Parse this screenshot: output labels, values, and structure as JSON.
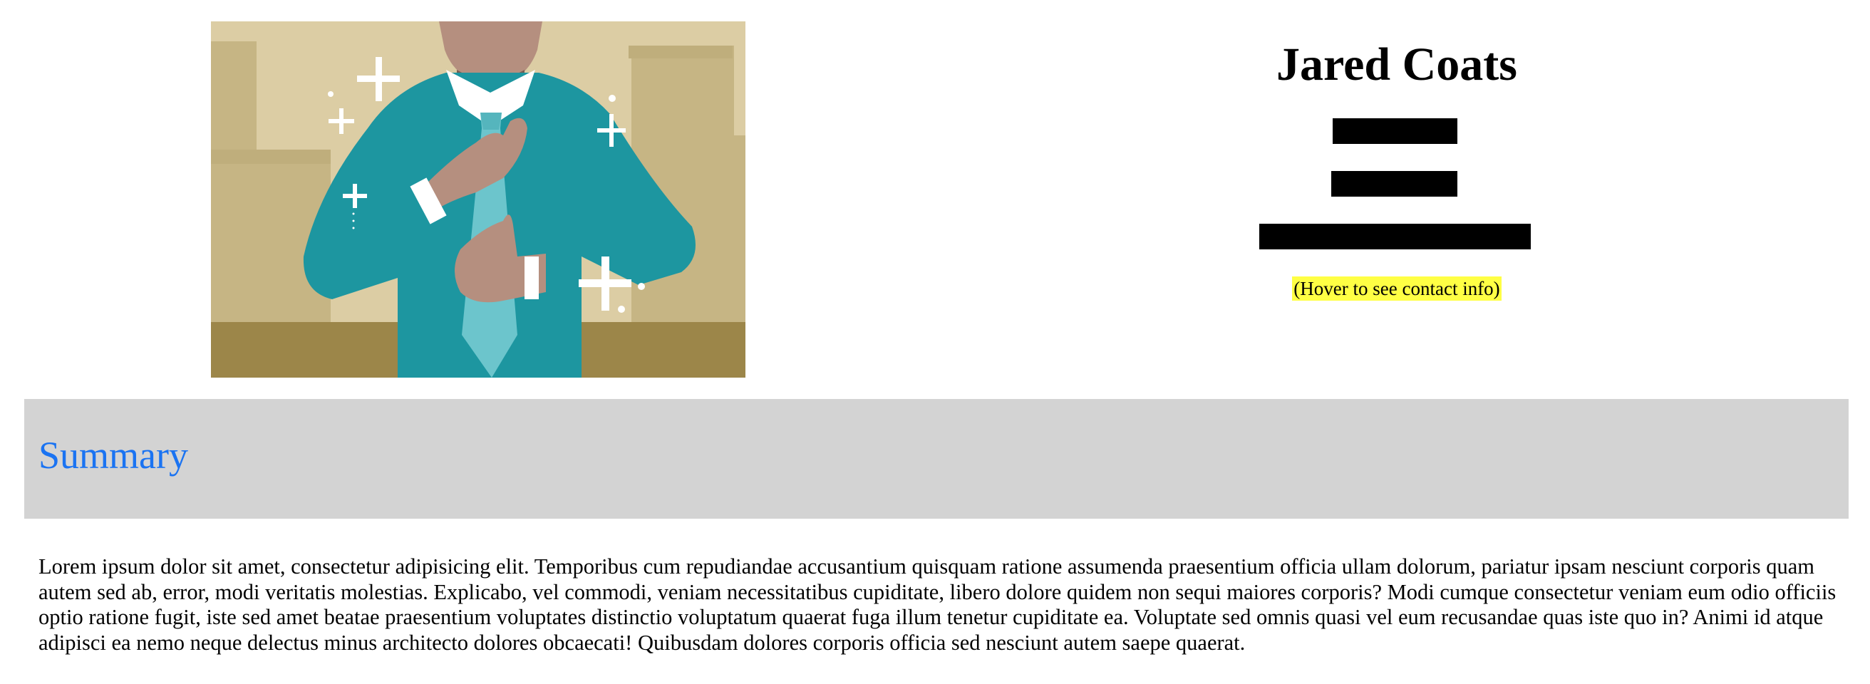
{
  "profile": {
    "name": "Jared Coats",
    "hover_hint": "(Hover to see contact info)"
  },
  "hero_image": {
    "icon": "man-adjusting-tie-illustration"
  },
  "summary": {
    "heading": "Summary",
    "body": "Lorem ipsum dolor sit amet, consectetur adipisicing elit. Temporibus cum repudiandae accusantium quisquam ratione assumenda praesentium officia ullam dolorum, pariatur ipsam nesciunt corporis quam autem sed ab, error, modi veritatis molestias. Explicabo, vel commodi, veniam necessitatibus cupiditate, libero dolore quidem non sequi maiores corporis? Modi cumque consectetur veniam eum odio officiis optio ratione fugit, iste sed amet beatae praesentium voluptates distinctio voluptatum quaerat fuga illum tenetur cupiditate ea. Voluptate sed omnis quasi vel eum recusandae quas iste quo in? Animi id atque adipisci ea nemo neque delectus minus architecto dolores obcaecati! Quibusdam dolores corporis officia sed nesciunt autem saepe quaerat."
  },
  "colors": {
    "summary_heading": "#1a73f2",
    "summary_bar_bg": "#d3d3d3",
    "hover_highlight": "#ffff44",
    "redaction": "#000000"
  }
}
